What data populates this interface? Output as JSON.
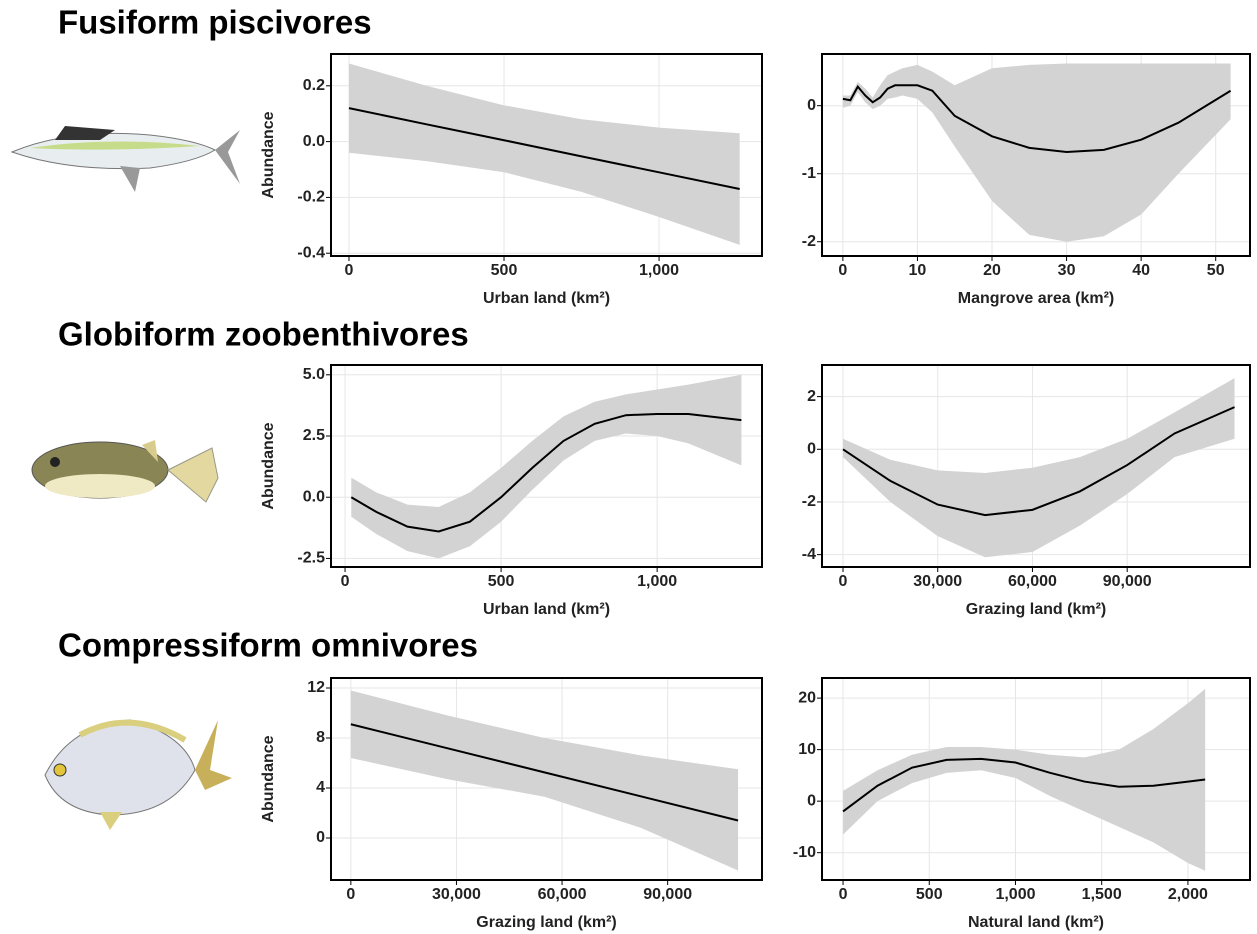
{
  "sections": [
    {
      "title": "Fusiform piscivores"
    },
    {
      "title": "Globiform zoobenthivores"
    },
    {
      "title": "Compressiform omnivores"
    }
  ],
  "chart_data": [
    {
      "type": "line",
      "xlabel": "Urban land (km²)",
      "ylabel": "Abundance",
      "x": [
        0,
        250,
        500,
        750,
        1000,
        1260
      ],
      "values": [
        0.12,
        0.062,
        0.005,
        -0.053,
        -0.11,
        -0.17
      ],
      "upper": [
        0.28,
        0.2,
        0.13,
        0.08,
        0.05,
        0.03
      ],
      "lower": [
        -0.04,
        -0.07,
        -0.11,
        -0.18,
        -0.27,
        -0.37
      ],
      "color": "#000000",
      "band_color": "#d3d3d3",
      "xlim": [
        -58,
        1332
      ],
      "ylim": [
        -0.41,
        0.314
      ],
      "xticks": [
        0,
        500,
        {
          "value": 1000,
          "label": "1,000"
        }
      ],
      "yticks": [
        -0.4,
        -0.2,
        {
          "value": 0,
          "label": "0.0"
        },
        0.2
      ],
      "grid": true
    },
    {
      "type": "line",
      "xlabel": "Mangrove area (km²)",
      "x": [
        0,
        1,
        2,
        3,
        4,
        5,
        6,
        7,
        8,
        10,
        12,
        15,
        20,
        25,
        30,
        35,
        40,
        45,
        52
      ],
      "values": [
        0.1,
        0.08,
        0.28,
        0.15,
        0.05,
        0.12,
        0.25,
        0.3,
        0.3,
        0.3,
        0.22,
        -0.15,
        -0.45,
        -0.62,
        -0.68,
        -0.65,
        -0.5,
        -0.25,
        0.22
      ],
      "upper": [
        0.15,
        0.15,
        0.35,
        0.25,
        0.12,
        0.3,
        0.45,
        0.5,
        0.55,
        0.6,
        0.5,
        0.3,
        0.55,
        0.6,
        0.62,
        0.62,
        0.62,
        0.62,
        0.62
      ],
      "lower": [
        -0.03,
        0.0,
        0.2,
        0.05,
        -0.05,
        0.0,
        0.1,
        0.12,
        0.15,
        0.1,
        -0.1,
        -0.6,
        -1.4,
        -1.9,
        -2.0,
        -1.92,
        -1.6,
        -1.0,
        -0.2
      ],
      "color": "#000000",
      "band_color": "#d3d3d3",
      "xlim": [
        -2.8,
        54.6
      ],
      "ylim": [
        -2.21,
        0.76
      ],
      "xticks": [
        0,
        10,
        20,
        30,
        40,
        50
      ],
      "yticks": [
        -2,
        -1,
        0
      ],
      "grid": true
    },
    {
      "type": "line",
      "xlabel": "Urban land (km²)",
      "ylabel": "Abundance",
      "x": [
        20,
        100,
        200,
        300,
        400,
        500,
        600,
        700,
        800,
        900,
        1000,
        1100,
        1270
      ],
      "values": [
        0,
        -0.6,
        -1.2,
        -1.4,
        -1.0,
        0,
        1.2,
        2.3,
        3.0,
        3.35,
        3.4,
        3.4,
        3.15
      ],
      "upper": [
        0.8,
        0.2,
        -0.3,
        -0.4,
        0.2,
        1.2,
        2.3,
        3.3,
        3.9,
        4.2,
        4.4,
        4.6,
        5.0
      ],
      "lower": [
        -0.8,
        -1.5,
        -2.2,
        -2.5,
        -2.0,
        -1.0,
        0.3,
        1.5,
        2.3,
        2.6,
        2.5,
        2.2,
        1.3
      ],
      "color": "#000000",
      "band_color": "#d3d3d3",
      "xlim": [
        -45,
        1336
      ],
      "ylim": [
        -2.85,
        5.4
      ],
      "xticks": [
        0,
        500,
        {
          "value": 1000,
          "label": "1,000"
        }
      ],
      "yticks": [
        -2.5,
        {
          "value": 0,
          "label": "0.0"
        },
        2.5,
        {
          "value": 5,
          "label": "5.0"
        }
      ],
      "grid": true
    },
    {
      "type": "line",
      "xlabel": "Grazing land (km²)",
      "x": [
        0,
        15000,
        30000,
        45000,
        60000,
        75000,
        90000,
        105000,
        124000
      ],
      "values": [
        0,
        -1.2,
        -2.1,
        -2.5,
        -2.3,
        -1.6,
        -0.6,
        0.6,
        1.6
      ],
      "upper": [
        0.4,
        -0.4,
        -0.8,
        -0.9,
        -0.7,
        -0.3,
        0.4,
        1.4,
        2.7
      ],
      "lower": [
        -0.3,
        -2.0,
        -3.3,
        -4.1,
        -3.9,
        -2.9,
        -1.7,
        -0.3,
        0.4
      ],
      "color": "#000000",
      "band_color": "#d3d3d3",
      "xlim": [
        -6650,
        128900
      ],
      "ylim": [
        -4.47,
        3.2
      ],
      "xticks": [
        0,
        {
          "value": 30000,
          "label": "30,000"
        },
        {
          "value": 60000,
          "label": "60,000"
        },
        {
          "value": 90000,
          "label": "90,000"
        }
      ],
      "yticks": [
        -4,
        -2,
        0,
        2
      ],
      "grid": true
    },
    {
      "type": "line",
      "xlabel": "Grazing land (km²)",
      "ylabel": "Abundance",
      "x": [
        0,
        27500,
        55000,
        82500,
        110000
      ],
      "values": [
        9.1,
        7.175,
        5.25,
        3.325,
        1.4
      ],
      "upper": [
        11.8,
        9.8,
        8.0,
        6.6,
        5.5
      ],
      "lower": [
        6.4,
        4.7,
        3.3,
        0.8,
        -2.6
      ],
      "color": "#000000",
      "band_color": "#d3d3d3",
      "xlim": [
        -5640,
        116800
      ],
      "ylim": [
        -3.36,
        12.8
      ],
      "xticks": [
        0,
        {
          "value": 30000,
          "label": "30,000"
        },
        {
          "value": 60000,
          "label": "60,000"
        },
        {
          "value": 90000,
          "label": "90,000"
        }
      ],
      "yticks": [
        0,
        4,
        8,
        12
      ],
      "grid": true
    },
    {
      "type": "line",
      "xlabel": "Natural land (km²)",
      "x": [
        0,
        200,
        400,
        600,
        800,
        1000,
        1200,
        1400,
        1600,
        1800,
        2000,
        2100
      ],
      "values": [
        -2,
        3,
        6.5,
        8,
        8.2,
        7.5,
        5.5,
        3.8,
        2.8,
        3,
        3.8,
        4.2
      ],
      "upper": [
        2,
        6,
        9,
        10.5,
        10.5,
        10,
        9,
        8.5,
        10,
        14,
        19,
        21.8
      ],
      "lower": [
        -6.5,
        0,
        3.5,
        5.5,
        6,
        4.5,
        1,
        -2,
        -5,
        -8,
        -12,
        -13.5
      ],
      "color": "#000000",
      "band_color": "#d3d3d3",
      "xlim": [
        -122,
        2360
      ],
      "ylim": [
        -15.3,
        23.9
      ],
      "xticks": [
        0,
        500,
        {
          "value": 1000,
          "label": "1,000"
        },
        {
          "value": 1500,
          "label": "1,500"
        },
        {
          "value": 2000,
          "label": "2,000"
        }
      ],
      "yticks": [
        -10,
        0,
        10,
        20
      ],
      "grid": true
    }
  ]
}
